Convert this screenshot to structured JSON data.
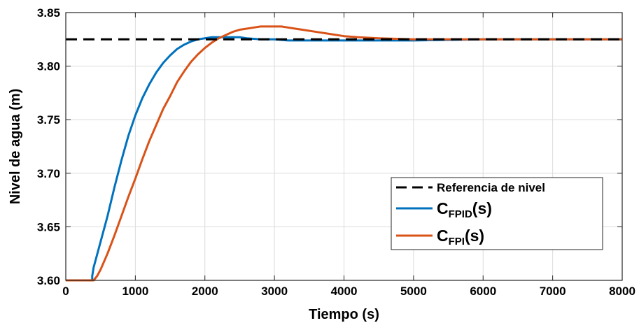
{
  "chart_data": {
    "type": "line",
    "title": "",
    "xlabel": "Tiempo (s)",
    "ylabel": "Nivel de agua (m)",
    "xlim": [
      0,
      8000
    ],
    "ylim": [
      3.6,
      3.85
    ],
    "xticks": [
      0,
      1000,
      2000,
      3000,
      4000,
      5000,
      6000,
      7000,
      8000
    ],
    "xtick_labels": [
      "0",
      "1000",
      "2000",
      "3000",
      "4000",
      "5000",
      "6000",
      "7000",
      "8000"
    ],
    "yticks": [
      3.6,
      3.65,
      3.7,
      3.75,
      3.8,
      3.85
    ],
    "ytick_labels": [
      "3.60",
      "3.65",
      "3.70",
      "3.75",
      "3.80",
      "3.85"
    ],
    "grid": true,
    "legend_position": "bottom-right",
    "series": [
      {
        "name": "Referencia de nivel",
        "color": "#000000",
        "style": "dashed",
        "x": [
          0,
          8000
        ],
        "y": [
          3.825,
          3.825
        ]
      },
      {
        "name_main": "C",
        "name_sub": "FPID",
        "name_suffix": "(s)",
        "color": "#0072BD",
        "style": "solid",
        "x": [
          0,
          380,
          380,
          400,
          450,
          500,
          600,
          700,
          800,
          900,
          1000,
          1100,
          1200,
          1300,
          1400,
          1500,
          1600,
          1700,
          1800,
          1900,
          2000,
          2100,
          2200,
          2300,
          2400,
          2500,
          2600,
          2800,
          3000,
          3200,
          3500,
          4000,
          4500,
          5000,
          6000,
          7000,
          8000
        ],
        "y": [
          3.6,
          3.6,
          3.604,
          3.612,
          3.624,
          3.636,
          3.66,
          3.687,
          3.712,
          3.735,
          3.754,
          3.77,
          3.783,
          3.794,
          3.803,
          3.81,
          3.816,
          3.82,
          3.823,
          3.825,
          3.826,
          3.827,
          3.827,
          3.827,
          3.827,
          3.827,
          3.826,
          3.825,
          3.825,
          3.824,
          3.824,
          3.824,
          3.824,
          3.824,
          3.825,
          3.825,
          3.825
        ]
      },
      {
        "name_main": "C",
        "name_sub": "FPI",
        "name_suffix": "(s)",
        "color": "#D95319",
        "style": "solid",
        "x": [
          0,
          400,
          450,
          500,
          600,
          700,
          800,
          900,
          1000,
          1100,
          1200,
          1300,
          1400,
          1500,
          1600,
          1700,
          1800,
          1900,
          2000,
          2100,
          2200,
          2300,
          2400,
          2500,
          2600,
          2700,
          2800,
          2900,
          3000,
          3100,
          3200,
          3300,
          3400,
          3600,
          3800,
          4000,
          4200,
          4500,
          5000,
          5500,
          6000,
          7000,
          8000
        ],
        "y": [
          3.6,
          3.6,
          3.604,
          3.61,
          3.625,
          3.642,
          3.66,
          3.678,
          3.695,
          3.713,
          3.73,
          3.745,
          3.76,
          3.772,
          3.785,
          3.795,
          3.804,
          3.811,
          3.817,
          3.822,
          3.826,
          3.829,
          3.832,
          3.834,
          3.835,
          3.836,
          3.837,
          3.837,
          3.837,
          3.837,
          3.836,
          3.835,
          3.834,
          3.832,
          3.83,
          3.828,
          3.827,
          3.826,
          3.825,
          3.825,
          3.825,
          3.825,
          3.825
        ]
      }
    ]
  }
}
